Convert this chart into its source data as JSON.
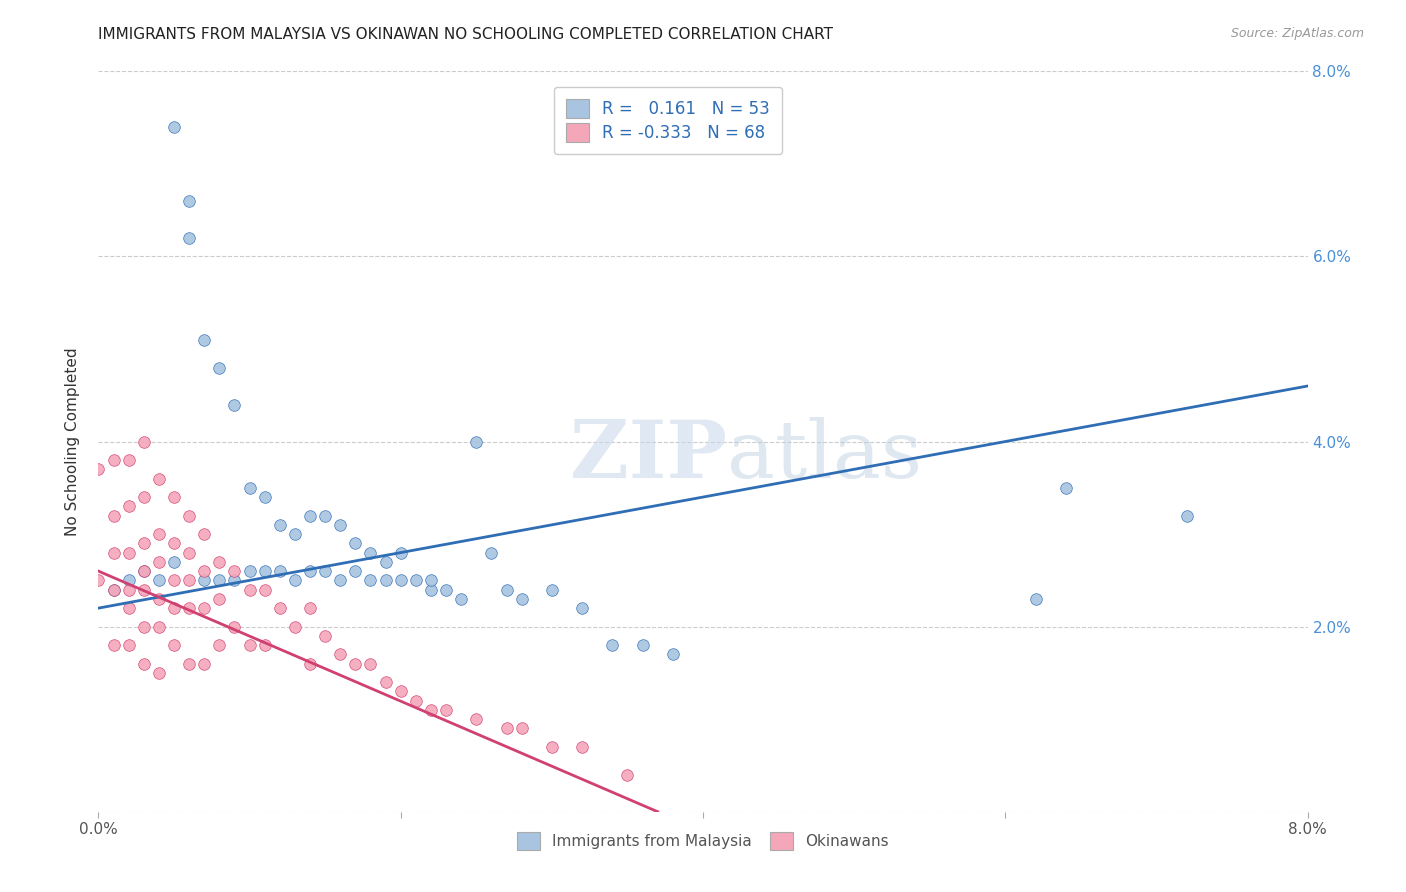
{
  "title": "IMMIGRANTS FROM MALAYSIA VS OKINAWAN NO SCHOOLING COMPLETED CORRELATION CHART",
  "source": "Source: ZipAtlas.com",
  "ylabel": "No Schooling Completed",
  "xmin": 0.0,
  "xmax": 0.08,
  "ymin": 0.0,
  "ymax": 0.08,
  "blue_color": "#a8c4e0",
  "pink_color": "#f4a7b9",
  "blue_line_color": "#2f6db5",
  "pink_line_color": "#d04070",
  "legend_R_blue": "0.161",
  "legend_N_blue": "53",
  "legend_R_pink": "-0.333",
  "legend_N_pink": "68",
  "watermark_zip": "ZIP",
  "watermark_atlas": "atlas",
  "blue_line_x": [
    0.0,
    0.08
  ],
  "blue_line_y": [
    0.022,
    0.046
  ],
  "pink_line_x": [
    0.0,
    0.037
  ],
  "pink_line_y": [
    0.026,
    0.0
  ],
  "blue_scatter_x": [
    0.001,
    0.002,
    0.003,
    0.004,
    0.005,
    0.005,
    0.006,
    0.006,
    0.007,
    0.007,
    0.008,
    0.008,
    0.009,
    0.009,
    0.01,
    0.01,
    0.011,
    0.011,
    0.012,
    0.012,
    0.013,
    0.013,
    0.014,
    0.014,
    0.015,
    0.015,
    0.016,
    0.016,
    0.017,
    0.017,
    0.018,
    0.018,
    0.019,
    0.019,
    0.02,
    0.02,
    0.021,
    0.022,
    0.022,
    0.023,
    0.024,
    0.025,
    0.026,
    0.027,
    0.028,
    0.03,
    0.032,
    0.034,
    0.036,
    0.038,
    0.062,
    0.064,
    0.072
  ],
  "blue_scatter_y": [
    0.024,
    0.025,
    0.026,
    0.025,
    0.074,
    0.027,
    0.066,
    0.062,
    0.051,
    0.025,
    0.048,
    0.025,
    0.044,
    0.025,
    0.035,
    0.026,
    0.034,
    0.026,
    0.031,
    0.026,
    0.03,
    0.025,
    0.032,
    0.026,
    0.032,
    0.026,
    0.031,
    0.025,
    0.029,
    0.026,
    0.028,
    0.025,
    0.027,
    0.025,
    0.028,
    0.025,
    0.025,
    0.024,
    0.025,
    0.024,
    0.023,
    0.04,
    0.028,
    0.024,
    0.023,
    0.024,
    0.022,
    0.018,
    0.018,
    0.017,
    0.023,
    0.035,
    0.032
  ],
  "pink_scatter_x": [
    0.0,
    0.0,
    0.001,
    0.001,
    0.001,
    0.001,
    0.001,
    0.002,
    0.002,
    0.002,
    0.002,
    0.002,
    0.002,
    0.003,
    0.003,
    0.003,
    0.003,
    0.003,
    0.003,
    0.003,
    0.004,
    0.004,
    0.004,
    0.004,
    0.004,
    0.004,
    0.005,
    0.005,
    0.005,
    0.005,
    0.005,
    0.006,
    0.006,
    0.006,
    0.006,
    0.006,
    0.007,
    0.007,
    0.007,
    0.007,
    0.008,
    0.008,
    0.008,
    0.009,
    0.009,
    0.01,
    0.01,
    0.011,
    0.011,
    0.012,
    0.013,
    0.014,
    0.014,
    0.015,
    0.016,
    0.017,
    0.018,
    0.019,
    0.02,
    0.021,
    0.022,
    0.023,
    0.025,
    0.027,
    0.028,
    0.03,
    0.032,
    0.035
  ],
  "pink_scatter_y": [
    0.037,
    0.025,
    0.038,
    0.032,
    0.028,
    0.024,
    0.018,
    0.038,
    0.033,
    0.028,
    0.024,
    0.022,
    0.018,
    0.04,
    0.034,
    0.029,
    0.026,
    0.024,
    0.02,
    0.016,
    0.036,
    0.03,
    0.027,
    0.023,
    0.02,
    0.015,
    0.034,
    0.029,
    0.025,
    0.022,
    0.018,
    0.032,
    0.028,
    0.025,
    0.022,
    0.016,
    0.03,
    0.026,
    0.022,
    0.016,
    0.027,
    0.023,
    0.018,
    0.026,
    0.02,
    0.024,
    0.018,
    0.024,
    0.018,
    0.022,
    0.02,
    0.022,
    0.016,
    0.019,
    0.017,
    0.016,
    0.016,
    0.014,
    0.013,
    0.012,
    0.011,
    0.011,
    0.01,
    0.009,
    0.009,
    0.007,
    0.007,
    0.004
  ]
}
